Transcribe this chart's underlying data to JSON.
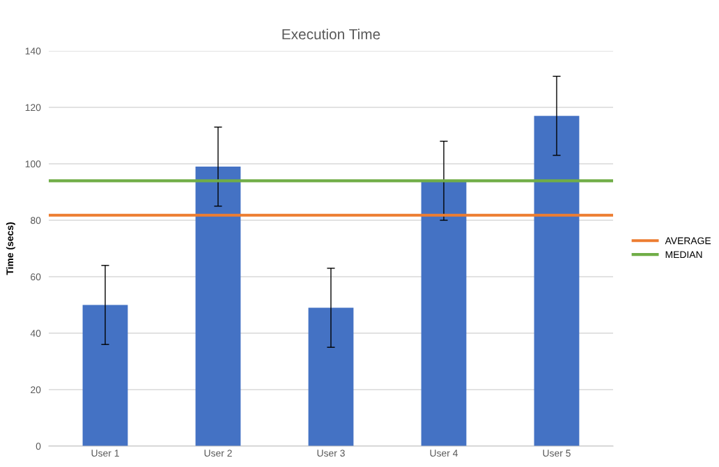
{
  "chart_data": {
    "type": "bar",
    "title": "Execution Time",
    "ylabel": "Time (secs)",
    "categories": [
      "User 1",
      "User 2",
      "User 3",
      "User 4",
      "User 5"
    ],
    "values": [
      50,
      99,
      49,
      94,
      117
    ],
    "color": "#4472c4",
    "errors": [
      14,
      14,
      14,
      14,
      14
    ],
    "ylim": [
      0,
      140
    ],
    "yticks": [
      0,
      20,
      40,
      60,
      80,
      100,
      120,
      140
    ],
    "grid": "y",
    "ref_lines": [
      {
        "axis": "y",
        "value": 81.8,
        "label": "AVERAGE",
        "color": "#ed7d31"
      },
      {
        "axis": "y",
        "value": 94,
        "label": "MEDIAN",
        "color": "#70ad47"
      }
    ],
    "legend": "right"
  }
}
